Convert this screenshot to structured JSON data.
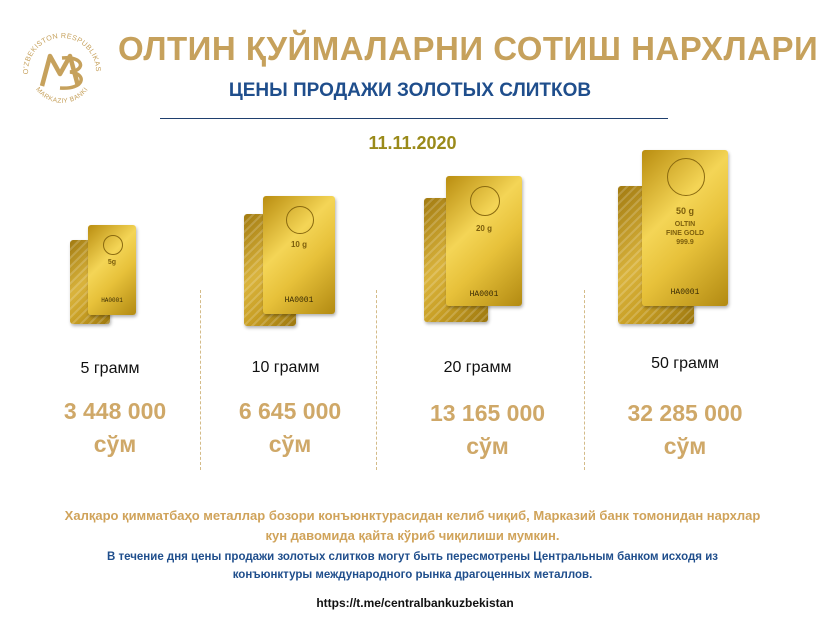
{
  "header": {
    "title": "ОЛТИН ҚУЙМАЛАРНИ СОТИШ НАРХЛАРИ",
    "subtitle": "ЦЕНЫ ПРОДАЖИ ЗОЛОТЫХ СЛИТКОВ",
    "date": "11.11.2020"
  },
  "logo": {
    "arc_text": "O'ZBEKISTON RESPUBLIKASI",
    "bottom_text": "MARKAZIY BANKI",
    "color": "#c6a15c"
  },
  "products": [
    {
      "weight": "5 грамм",
      "price": "3 448 000",
      "currency": "сўм",
      "bar_label": "5g",
      "bar_sub": "",
      "serial": "HA0001"
    },
    {
      "weight": "10 грамм",
      "price": "6 645 000",
      "currency": "сўм",
      "bar_label": "10 g",
      "bar_sub": "",
      "serial": "HA0001"
    },
    {
      "weight": "20 грамм",
      "price": "13 165 000",
      "currency": "сўм",
      "bar_label": "20 g",
      "bar_sub": "",
      "serial": "HA0001"
    },
    {
      "weight": "50 грамм",
      "price": "32 285 000",
      "currency": "сўм",
      "bar_label": "50 g",
      "bar_sub": "OLTIN\nFINE GOLD\n999.9",
      "serial": "HA0001"
    }
  ],
  "notes": {
    "uz": "Халқаро қимматбаҳо металлар бозори конъюнктурасидан келиб чиқиб, Марказий банк томонидан нархлар кун давомида қайта кўриб чиқилиши мумкин.",
    "ru": "В течение дня цены продажи золотых слитков могут быть пересмотрены Центральным банком исходя из конъюнктуры международного рынка драгоценных металлов."
  },
  "link": "https://t.me/centralbankuzbekistan",
  "colors": {
    "gold_text": "#c6a15c",
    "blue_text": "#1f4e8c",
    "date_text": "#9a8a1a"
  }
}
